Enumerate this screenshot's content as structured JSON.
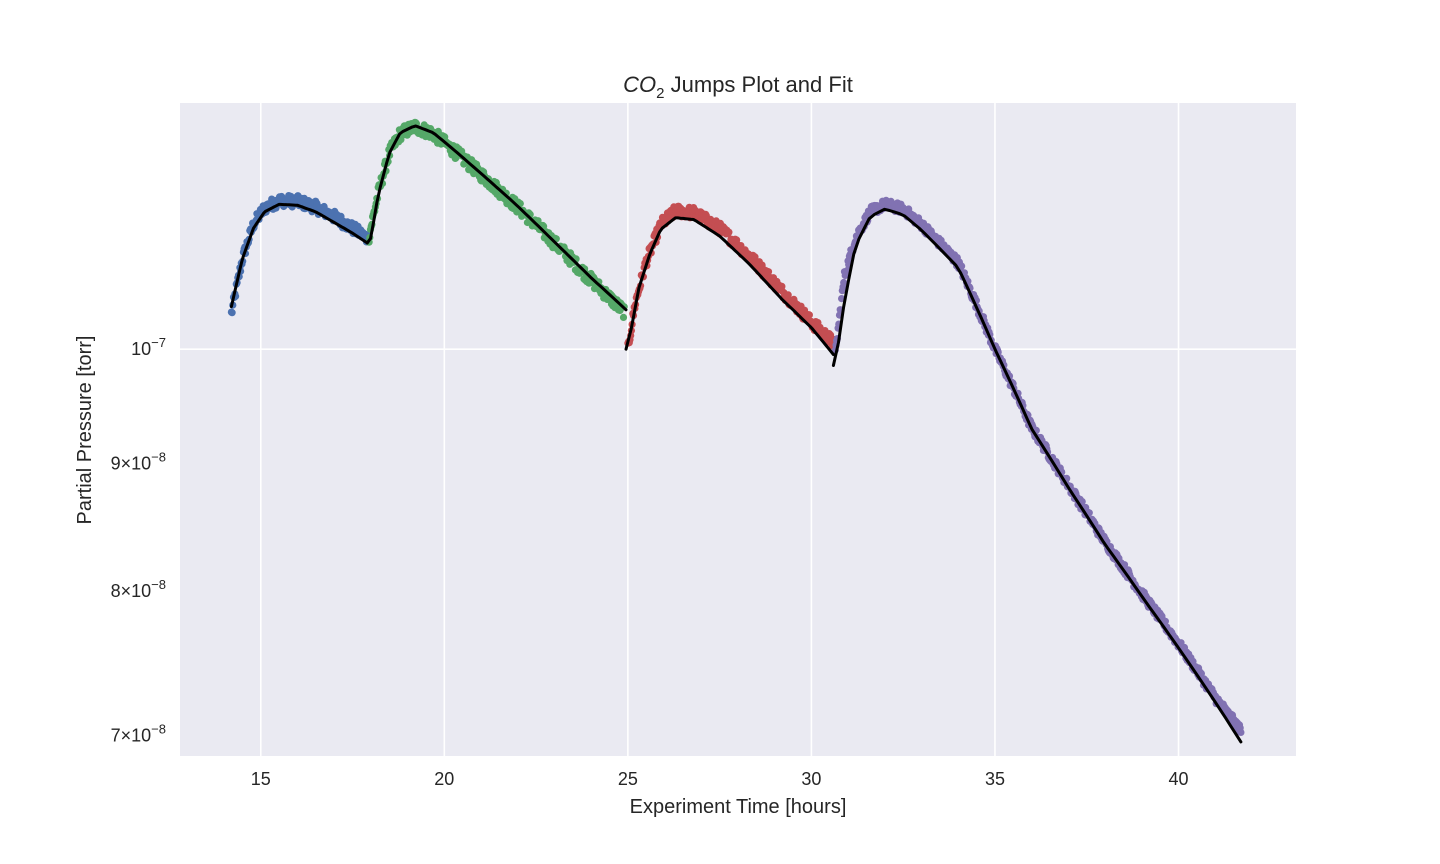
{
  "chart_data": {
    "type": "scatter",
    "title": {
      "main": "CO",
      "subscript": "2",
      "rest": " Jumps Plot and Fit"
    },
    "xlabel": "Experiment Time [hours]",
    "ylabel": "Partial Pressure [torr]",
    "xlim": [
      12.8,
      43.2
    ],
    "ylim": [
      6.87e-08,
      1.255e-07
    ],
    "yscale": "log",
    "grid": true,
    "background": "#eaeaf2",
    "x_ticks": [
      {
        "value": 15,
        "label": "15"
      },
      {
        "value": 20,
        "label": "20"
      },
      {
        "value": 25,
        "label": "25"
      },
      {
        "value": 30,
        "label": "30"
      },
      {
        "value": 35,
        "label": "35"
      },
      {
        "value": 40,
        "label": "40"
      }
    ],
    "y_ticks": [
      {
        "value": 1e-07,
        "mantissa": "",
        "base": "10",
        "exponent": "−7"
      },
      {
        "value": 9e-08,
        "mantissa": "9",
        "base": "10",
        "exponent": "−8"
      },
      {
        "value": 8e-08,
        "mantissa": "8",
        "base": "10",
        "exponent": "−8"
      },
      {
        "value": 7e-08,
        "mantissa": "7",
        "base": "10",
        "exponent": "−8"
      }
    ],
    "series": [
      {
        "color": "#4c72b0",
        "noise": 0.0055,
        "points": [
          [
            14.2,
            1.033e-07
          ],
          [
            14.5,
            1.087e-07
          ],
          [
            14.8,
            1.122e-07
          ],
          [
            15.1,
            1.139e-07
          ],
          [
            15.5,
            1.147e-07
          ],
          [
            16.0,
            1.146e-07
          ],
          [
            16.5,
            1.14e-07
          ],
          [
            17.0,
            1.13e-07
          ],
          [
            17.5,
            1.118e-07
          ],
          [
            17.9,
            1.108e-07
          ]
        ]
      },
      {
        "color": "#55a868",
        "noise": 0.006,
        "points": [
          [
            17.95,
            1.11e-07
          ],
          [
            18.2,
            1.155e-07
          ],
          [
            18.5,
            1.198e-07
          ],
          [
            18.8,
            1.22e-07
          ],
          [
            19.2,
            1.228e-07
          ],
          [
            19.7,
            1.22e-07
          ],
          [
            20.2,
            1.203e-07
          ],
          [
            21.0,
            1.175e-07
          ],
          [
            22.0,
            1.14e-07
          ],
          [
            23.0,
            1.103e-07
          ],
          [
            24.0,
            1.066e-07
          ],
          [
            24.9,
            1.035e-07
          ]
        ]
      },
      {
        "color": "#c44e52",
        "noise": 0.0055,
        "points": [
          [
            25.0,
            1e-07
          ],
          [
            25.2,
            1.043e-07
          ],
          [
            25.5,
            1.084e-07
          ],
          [
            25.9,
            1.122e-07
          ],
          [
            26.3,
            1.136e-07
          ],
          [
            26.8,
            1.134e-07
          ],
          [
            27.5,
            1.118e-07
          ],
          [
            28.3,
            1.09e-07
          ],
          [
            29.2,
            1.055e-07
          ],
          [
            30.0,
            1.025e-07
          ],
          [
            30.6,
            1.006e-07
          ]
        ]
      },
      {
        "color": "#8172b2",
        "noise": 0.0045,
        "points": [
          [
            30.65,
            9.95e-08
          ],
          [
            30.9,
            1.07e-07
          ],
          [
            31.2,
            1.108e-07
          ],
          [
            31.6,
            1.135e-07
          ],
          [
            32.0,
            1.143e-07
          ],
          [
            32.5,
            1.138e-07
          ],
          [
            33.0,
            1.122e-07
          ],
          [
            34.0,
            1.083e-07
          ],
          [
            35.0,
            1e-07
          ],
          [
            36.0,
            9.3e-08
          ],
          [
            37.0,
            8.82e-08
          ],
          [
            38.0,
            8.37e-08
          ],
          [
            39.0,
            7.98e-08
          ],
          [
            40.0,
            7.62e-08
          ],
          [
            41.0,
            7.25e-08
          ],
          [
            41.7,
            7.03e-08
          ]
        ]
      }
    ],
    "fit": {
      "color": "#000000",
      "segments": [
        [
          [
            14.2,
            1.04e-07
          ],
          [
            14.5,
            1.087e-07
          ],
          [
            14.8,
            1.118e-07
          ],
          [
            15.1,
            1.135e-07
          ],
          [
            15.5,
            1.143e-07
          ],
          [
            16.0,
            1.142e-07
          ],
          [
            16.5,
            1.135e-07
          ],
          [
            17.0,
            1.124e-07
          ],
          [
            17.5,
            1.113e-07
          ],
          [
            17.9,
            1.103e-07
          ]
        ],
        [
          [
            17.9,
            1.103e-07
          ],
          [
            18.0,
            1.108e-07
          ],
          [
            18.2,
            1.153e-07
          ],
          [
            18.5,
            1.198e-07
          ],
          [
            18.8,
            1.221e-07
          ],
          [
            19.2,
            1.229e-07
          ],
          [
            19.7,
            1.221e-07
          ],
          [
            20.2,
            1.204e-07
          ],
          [
            21.0,
            1.176e-07
          ],
          [
            22.0,
            1.141e-07
          ],
          [
            23.0,
            1.104e-07
          ],
          [
            24.0,
            1.068e-07
          ],
          [
            24.95,
            1.037e-07
          ]
        ],
        [
          [
            24.95,
            1e-07
          ],
          [
            25.1,
            1.02e-07
          ],
          [
            25.3,
            1.058e-07
          ],
          [
            25.6,
            1.092e-07
          ],
          [
            25.9,
            1.117e-07
          ],
          [
            26.3,
            1.129e-07
          ],
          [
            26.8,
            1.127e-07
          ],
          [
            27.5,
            1.11e-07
          ],
          [
            28.3,
            1.082e-07
          ],
          [
            29.2,
            1.047e-07
          ],
          [
            30.0,
            1.02e-07
          ],
          [
            30.6,
            9.95e-08
          ]
        ],
        [
          [
            30.6,
            9.85e-08
          ],
          [
            30.75,
            1.008e-07
          ],
          [
            30.9,
            1.045e-07
          ],
          [
            31.2,
            1.1e-07
          ],
          [
            31.6,
            1.13e-07
          ],
          [
            32.0,
            1.138e-07
          ],
          [
            32.5,
            1.132e-07
          ],
          [
            33.0,
            1.116e-07
          ],
          [
            34.0,
            1.078e-07
          ],
          [
            35.0,
            1e-07
          ],
          [
            36.0,
            9.29e-08
          ],
          [
            37.0,
            8.8e-08
          ],
          [
            38.0,
            8.35e-08
          ],
          [
            39.0,
            7.96e-08
          ],
          [
            40.0,
            7.59e-08
          ],
          [
            41.0,
            7.22e-08
          ],
          [
            41.7,
            6.96e-08
          ]
        ]
      ]
    }
  }
}
